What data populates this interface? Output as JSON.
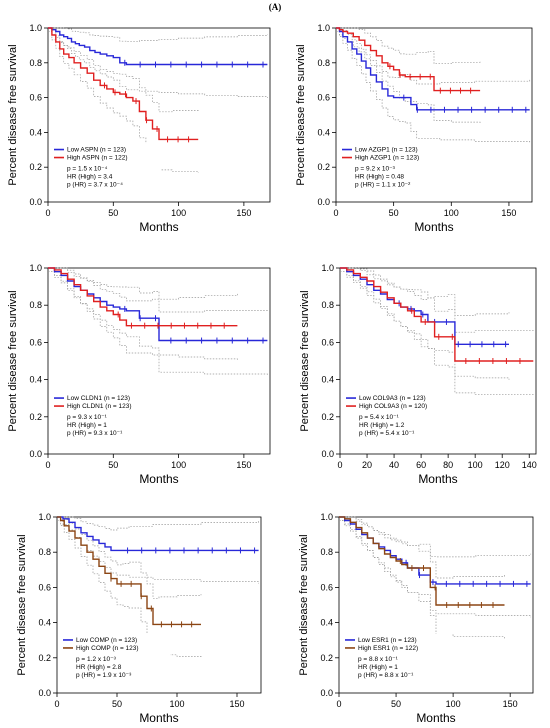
{
  "figure": {
    "label": "(A)"
  },
  "chart_data": [
    {
      "type": "line",
      "title": "",
      "xlabel": "Months",
      "ylabel": "Percent disease free survival",
      "xlim": [
        0,
        170
      ],
      "ylim": [
        0,
        1.0
      ],
      "xticks": [
        0,
        50,
        100,
        150
      ],
      "yticks": [
        0.0,
        0.2,
        0.4,
        0.6,
        0.8,
        1.0
      ],
      "series": [
        {
          "name": "Low ASPN (n = 123)",
          "color": "#2828d8",
          "x": [
            0,
            3,
            6,
            9,
            12,
            15,
            18,
            21,
            24,
            28,
            32,
            36,
            40,
            45,
            50,
            55,
            60,
            70,
            85,
            100,
            120,
            145,
            168
          ],
          "y": [
            1.0,
            0.99,
            0.98,
            0.96,
            0.95,
            0.94,
            0.92,
            0.91,
            0.9,
            0.89,
            0.87,
            0.86,
            0.85,
            0.84,
            0.83,
            0.8,
            0.79,
            0.79,
            0.79,
            0.79,
            0.79,
            0.79,
            0.79
          ]
        },
        {
          "name": "High ASPN (n = 122)",
          "color": "#e02020",
          "x": [
            0,
            3,
            6,
            9,
            12,
            16,
            20,
            25,
            30,
            35,
            40,
            45,
            50,
            55,
            60,
            65,
            70,
            75,
            80,
            85,
            95,
            115
          ],
          "y": [
            1.0,
            0.96,
            0.92,
            0.88,
            0.85,
            0.83,
            0.8,
            0.77,
            0.74,
            0.7,
            0.67,
            0.65,
            0.63,
            0.62,
            0.6,
            0.58,
            0.52,
            0.47,
            0.42,
            0.36,
            0.36,
            0.36
          ]
        }
      ],
      "legend_stats": [
        "p = 1.5 x 10⁻⁴",
        "HR (High) = 3.4",
        "p (HR) = 3.7 x 10⁻⁴"
      ]
    },
    {
      "type": "line",
      "title": "",
      "xlabel": "Months",
      "ylabel": "Percent disease free survival",
      "xlim": [
        0,
        170
      ],
      "ylim": [
        0,
        1.0
      ],
      "xticks": [
        0,
        50,
        100,
        150
      ],
      "yticks": [
        0.0,
        0.2,
        0.4,
        0.6,
        0.8,
        1.0
      ],
      "series": [
        {
          "name": "Low AZGP1 (n = 123)",
          "color": "#2828d8",
          "x": [
            0,
            3,
            6,
            10,
            14,
            18,
            22,
            26,
            30,
            35,
            40,
            45,
            50,
            55,
            60,
            65,
            70,
            90,
            120,
            168
          ],
          "y": [
            1.0,
            0.98,
            0.95,
            0.92,
            0.88,
            0.85,
            0.81,
            0.77,
            0.73,
            0.69,
            0.65,
            0.61,
            0.6,
            0.6,
            0.6,
            0.56,
            0.53,
            0.53,
            0.53,
            0.53
          ]
        },
        {
          "name": "High AZGP1 (n = 123)",
          "color": "#e02020",
          "x": [
            0,
            3,
            6,
            10,
            15,
            20,
            25,
            30,
            35,
            40,
            45,
            50,
            55,
            60,
            70,
            80,
            85,
            100,
            125
          ],
          "y": [
            1.0,
            0.99,
            0.98,
            0.97,
            0.95,
            0.93,
            0.9,
            0.87,
            0.84,
            0.8,
            0.78,
            0.76,
            0.73,
            0.72,
            0.72,
            0.72,
            0.64,
            0.64,
            0.64
          ]
        }
      ],
      "legend_stats": [
        "p = 9.2 x 10⁻³",
        "HR (High) = 0.48",
        "p (HR) = 1.1 x 10⁻²"
      ]
    },
    {
      "type": "line",
      "title": "",
      "xlabel": "Months",
      "ylabel": "Percent disease free survival",
      "xlim": [
        0,
        170
      ],
      "ylim": [
        0,
        1.0
      ],
      "xticks": [
        0,
        50,
        100,
        150
      ],
      "yticks": [
        0.0,
        0.2,
        0.4,
        0.6,
        0.8,
        1.0
      ],
      "series": [
        {
          "name": "Low CLDN1 (n = 123)",
          "color": "#2828d8",
          "x": [
            0,
            5,
            10,
            15,
            20,
            25,
            30,
            35,
            40,
            45,
            50,
            55,
            60,
            70,
            80,
            85,
            120,
            168
          ],
          "y": [
            1.0,
            0.98,
            0.96,
            0.93,
            0.9,
            0.88,
            0.86,
            0.84,
            0.82,
            0.8,
            0.79,
            0.78,
            0.77,
            0.73,
            0.73,
            0.61,
            0.61,
            0.61
          ]
        },
        {
          "name": "High CLDN1 (n = 123)",
          "color": "#e02020",
          "x": [
            0,
            5,
            10,
            15,
            20,
            25,
            30,
            35,
            40,
            45,
            50,
            55,
            60,
            80,
            100,
            120,
            145
          ],
          "y": [
            1.0,
            0.99,
            0.97,
            0.94,
            0.91,
            0.88,
            0.85,
            0.82,
            0.79,
            0.77,
            0.75,
            0.72,
            0.69,
            0.69,
            0.69,
            0.69,
            0.69
          ]
        }
      ],
      "legend_stats": [
        "p = 9.3 x 10⁻¹",
        "HR (High) = 1",
        "p (HR) = 9.3 x 10⁻¹"
      ]
    },
    {
      "type": "line",
      "title": "",
      "xlabel": "Months",
      "ylabel": "Percent disease free survival",
      "xlim": [
        0,
        145
      ],
      "ylim": [
        0,
        1.0
      ],
      "xticks": [
        0,
        20,
        40,
        60,
        80,
        100,
        120,
        140
      ],
      "yticks": [
        0.0,
        0.2,
        0.4,
        0.6,
        0.8,
        1.0
      ],
      "series": [
        {
          "name": "Low COL9A3 (n = 123)",
          "color": "#2828d8",
          "x": [
            0,
            5,
            10,
            15,
            20,
            25,
            30,
            35,
            40,
            45,
            50,
            55,
            60,
            65,
            70,
            80,
            85,
            100,
            125
          ],
          "y": [
            1.0,
            0.98,
            0.96,
            0.94,
            0.91,
            0.88,
            0.86,
            0.83,
            0.81,
            0.79,
            0.78,
            0.77,
            0.75,
            0.71,
            0.71,
            0.71,
            0.59,
            0.59,
            0.59
          ]
        },
        {
          "name": "High COL9A3 (n = 120)",
          "color": "#e02020",
          "x": [
            0,
            5,
            10,
            15,
            20,
            25,
            30,
            35,
            40,
            45,
            50,
            55,
            60,
            65,
            70,
            80,
            85,
            100,
            143
          ],
          "y": [
            1.0,
            0.99,
            0.97,
            0.95,
            0.93,
            0.9,
            0.87,
            0.84,
            0.81,
            0.79,
            0.77,
            0.74,
            0.71,
            0.71,
            0.63,
            0.63,
            0.5,
            0.5,
            0.5
          ]
        }
      ],
      "legend_stats": [
        "p = 5.4 x 10⁻¹",
        "HR (High) = 1.2",
        "p (HR) = 5.4 x 10⁻¹"
      ]
    },
    {
      "type": "line",
      "title": "",
      "xlabel": "Months",
      "ylabel": "Percent disease free survival",
      "xlim": [
        0,
        170
      ],
      "ylim": [
        0,
        1.0
      ],
      "xticks": [
        0,
        50,
        100,
        150
      ],
      "yticks": [
        0.0,
        0.2,
        0.4,
        0.6,
        0.8,
        1.0
      ],
      "series": [
        {
          "name": "Low COMP (n = 123)",
          "color": "#2828d8",
          "x": [
            0,
            5,
            10,
            15,
            20,
            25,
            30,
            35,
            40,
            45,
            50,
            60,
            80,
            120,
            168
          ],
          "y": [
            1.0,
            0.99,
            0.97,
            0.94,
            0.91,
            0.89,
            0.87,
            0.85,
            0.83,
            0.81,
            0.81,
            0.81,
            0.81,
            0.81,
            0.81
          ]
        },
        {
          "name": "High COMP (n = 123)",
          "color": "#8b4513",
          "x": [
            0,
            3,
            6,
            10,
            15,
            20,
            25,
            30,
            35,
            40,
            45,
            50,
            55,
            60,
            70,
            75,
            80,
            85,
            100,
            120
          ],
          "y": [
            1.0,
            0.98,
            0.95,
            0.92,
            0.88,
            0.84,
            0.8,
            0.76,
            0.72,
            0.68,
            0.65,
            0.62,
            0.62,
            0.62,
            0.55,
            0.48,
            0.39,
            0.39,
            0.39,
            0.39
          ]
        }
      ],
      "legend_stats": [
        "p = 1.2 x 10⁻³",
        "HR (High) = 2.8",
        "p (HR) = 1.9 x 10⁻³"
      ]
    },
    {
      "type": "line",
      "title": "",
      "xlabel": "Months",
      "ylabel": "Percent disease free survival",
      "xlim": [
        0,
        170
      ],
      "ylim": [
        0,
        1.0
      ],
      "xticks": [
        0,
        50,
        100,
        150
      ],
      "yticks": [
        0.0,
        0.2,
        0.4,
        0.6,
        0.8,
        1.0
      ],
      "series": [
        {
          "name": "Low ESR1 (n = 123)",
          "color": "#2828d8",
          "x": [
            0,
            5,
            10,
            15,
            20,
            25,
            30,
            35,
            40,
            45,
            50,
            55,
            60,
            70,
            80,
            85,
            120,
            168
          ],
          "y": [
            1.0,
            0.98,
            0.96,
            0.93,
            0.9,
            0.88,
            0.85,
            0.83,
            0.81,
            0.78,
            0.76,
            0.74,
            0.71,
            0.67,
            0.63,
            0.62,
            0.62,
            0.62
          ]
        },
        {
          "name": "High ESR1 (n = 122)",
          "color": "#8b4513",
          "x": [
            0,
            5,
            10,
            15,
            20,
            25,
            30,
            35,
            40,
            45,
            50,
            55,
            60,
            70,
            80,
            85,
            100,
            145
          ],
          "y": [
            1.0,
            0.99,
            0.97,
            0.94,
            0.91,
            0.88,
            0.85,
            0.82,
            0.79,
            0.77,
            0.75,
            0.73,
            0.71,
            0.71,
            0.6,
            0.5,
            0.5,
            0.5
          ]
        }
      ],
      "legend_stats": [
        "p = 8.8 x 10⁻¹",
        "HR (High) = 1",
        "p (HR) = 8.8 x 10⁻¹"
      ]
    }
  ]
}
